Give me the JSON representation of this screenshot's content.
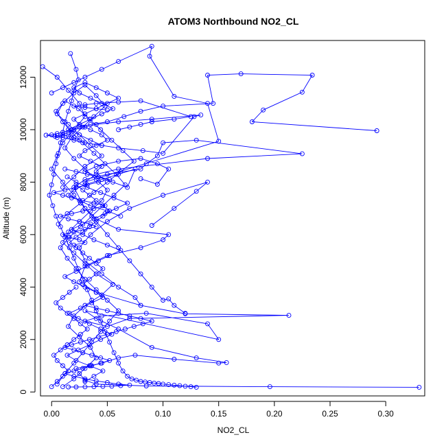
{
  "chart_data": {
    "type": "line",
    "title": "ATOM3 Northbound NO2_CL",
    "xlabel": "NO2_CL",
    "ylabel": "Altitude (m)",
    "xlim": [
      -0.01,
      0.335
    ],
    "ylim": [
      -150,
      13400
    ],
    "xticks": [
      0.0,
      0.05,
      0.1,
      0.15,
      0.2,
      0.25,
      0.3
    ],
    "xtick_labels": [
      "0.00",
      "0.05",
      "0.10",
      "0.15",
      "0.20",
      "0.25",
      "0.30"
    ],
    "yticks": [
      0,
      2000,
      4000,
      6000,
      8000,
      10000,
      12000
    ],
    "ytick_labels": [
      "0",
      "2000",
      "4000",
      "6000",
      "8000",
      "10000",
      "12000"
    ],
    "grid": false,
    "marker": "open-circle",
    "color": "#0000ff",
    "series": [
      {
        "x": [
          0.33,
          0.196,
          0.085,
          0.04,
          0.03,
          0.025,
          0.022,
          0.035,
          0.045,
          0.06,
          0.075,
          0.11,
          0.15,
          0.157,
          0.13,
          0.09,
          0.06,
          0.04,
          0.03,
          0.15,
          0.14,
          0.085,
          0.045,
          0.03,
          0.05,
          0.07,
          0.213,
          0.12,
          0.08,
          0.04,
          0.025,
          0.03,
          0.05,
          0.08,
          0.1,
          0.105,
          0.06,
          0.04,
          0.03,
          0.02,
          0.03,
          0.05,
          0.08,
          0.085,
          0.095,
          0.1,
          0.13,
          0.225,
          0.14,
          0.06,
          0.04,
          0.03,
          0.15,
          0.14,
          0.11,
          0.088,
          0.09,
          0.06,
          0.045,
          0.03,
          0.02,
          0.01,
          0.0
        ],
        "y": [
          180,
          200,
          230,
          300,
          450,
          700,
          900,
          1000,
          1100,
          1300,
          1400,
          1250,
          1100,
          1120,
          1300,
          1700,
          2400,
          2800,
          3100,
          2000,
          2600,
          3000,
          2900,
          2700,
          2500,
          2800,
          2920,
          2980,
          3300,
          3800,
          4200,
          4800,
          5200,
          5500,
          5800,
          6000,
          6200,
          6600,
          7000,
          7800,
          8100,
          8300,
          8500,
          8700,
          9000,
          9500,
          9600,
          9080,
          8900,
          8500,
          8300,
          8000,
          9560,
          11000,
          11270,
          12800,
          13180,
          12600,
          12300,
          12000,
          11800,
          11600,
          11400
        ]
      },
      {
        "x": [
          0.292,
          0.18,
          0.19,
          0.225,
          0.234,
          0.17,
          0.14,
          0.145,
          0.1,
          0.08,
          0.065,
          0.05,
          0.035,
          0.025,
          0.018,
          0.01,
          0.005,
          0.0,
          -0.005,
          0.01,
          0.02,
          0.03,
          0.045,
          0.06,
          0.082,
          0.1,
          0.128,
          0.134,
          0.09,
          0.06,
          0.04,
          0.03,
          0.02,
          0.015,
          0.01,
          0.005,
          0.003,
          0.005,
          0.01,
          0.015,
          0.02,
          0.025
        ],
        "y": [
          9960,
          10300,
          10750,
          11430,
          12080,
          12130,
          12080,
          11000,
          10900,
          10700,
          10500,
          10300,
          10200,
          10100,
          10000,
          9900,
          9850,
          9800,
          9790,
          9700,
          9600,
          9500,
          9400,
          9300,
          9200,
          9100,
          10500,
          10560,
          10400,
          10300,
          10200,
          10100,
          10000,
          9900,
          9800,
          9700,
          9750,
          9780,
          9800,
          9760,
          9700,
          9600
        ]
      },
      {
        "x": [
          -0.008,
          0.005,
          0.015,
          0.025,
          0.03,
          0.02,
          0.01,
          0.005,
          0.0,
          0.01,
          0.02,
          0.03,
          0.04,
          0.05,
          0.06,
          0.07,
          0.08,
          0.09,
          0.1,
          0.105,
          0.11,
          0.12
        ],
        "y": [
          12400,
          12000,
          11500,
          11000,
          10500,
          10000,
          9500,
          9000,
          8500,
          8000,
          7500,
          7000,
          6500,
          6000,
          5500,
          5000,
          4500,
          4000,
          3500,
          3550,
          3300,
          3000
        ]
      },
      {
        "x": [
          0.017,
          0.022,
          0.024,
          0.02,
          0.018,
          0.015,
          0.012,
          0.01,
          0.008,
          0.006,
          0.004,
          0.002,
          0.0,
          -0.002,
          0.001,
          0.004,
          0.008,
          0.012,
          0.016,
          0.02,
          0.024,
          0.028,
          0.032,
          0.036,
          0.04,
          0.044,
          0.048,
          0.052,
          0.056,
          0.06,
          0.064,
          0.068,
          0.072,
          0.076,
          0.08,
          0.084,
          0.088,
          0.092,
          0.096,
          0.1,
          0.105,
          0.11,
          0.115,
          0.12,
          0.125,
          0.13
        ],
        "y": [
          12900,
          12300,
          11900,
          11500,
          11100,
          10700,
          10300,
          9900,
          9500,
          9100,
          8700,
          8300,
          7900,
          7500,
          7100,
          6700,
          6300,
          5900,
          5500,
          5100,
          4700,
          4300,
          3900,
          3500,
          3100,
          2700,
          2300,
          1900,
          1500,
          1100,
          800,
          600,
          500,
          450,
          400,
          380,
          360,
          340,
          320,
          300,
          280,
          260,
          240,
          220,
          200,
          180
        ]
      },
      {
        "x": [
          0.01,
          0.02,
          0.03,
          0.04,
          0.035,
          0.025,
          0.015,
          0.02,
          0.03,
          0.045,
          0.055,
          0.04,
          0.03,
          0.02,
          0.01,
          0.015,
          0.025,
          0.035,
          0.045,
          0.05,
          0.04,
          0.03,
          0.02,
          0.012,
          0.018,
          0.028,
          0.038,
          0.048,
          0.04,
          0.03,
          0.02,
          0.01,
          0.005,
          0.015,
          0.025,
          0.035,
          0.045,
          0.03,
          0.02,
          0.01
        ],
        "y": [
          200,
          500,
          900,
          1300,
          1700,
          2100,
          2500,
          2900,
          3300,
          3700,
          4100,
          4500,
          4900,
          5300,
          5700,
          6100,
          6500,
          6900,
          7300,
          7700,
          8100,
          8500,
          8900,
          9300,
          9700,
          10100,
          10500,
          10900,
          11300,
          11700,
          11400,
          11000,
          10600,
          10200,
          9800,
          9400,
          9000,
          8600,
          8200,
          7800
        ]
      },
      {
        "x": [
          0.005,
          0.012,
          0.02,
          0.028,
          0.036,
          0.044,
          0.052,
          0.06,
          0.05,
          0.04,
          0.03,
          0.022,
          0.014,
          0.008,
          0.016,
          0.026,
          0.036,
          0.046,
          0.056,
          0.066,
          0.058,
          0.048,
          0.038,
          0.028,
          0.018,
          0.01,
          0.004,
          0.012,
          0.024,
          0.034,
          0.044,
          0.054,
          0.064,
          0.074,
          0.062,
          0.05,
          0.038,
          0.026,
          0.014,
          0.006
        ],
        "y": [
          300,
          700,
          1100,
          1500,
          1900,
          2300,
          2700,
          3100,
          3500,
          3900,
          4300,
          4700,
          5100,
          5500,
          5900,
          6300,
          6700,
          7100,
          7500,
          7900,
          8300,
          8700,
          9100,
          9500,
          9900,
          10300,
          10700,
          11100,
          10800,
          10400,
          10000,
          9600,
          9200,
          8800,
          8400,
          8000,
          7600,
          7200,
          6800,
          6400
        ]
      },
      {
        "x": [
          0.03,
          0.038,
          0.046,
          0.034,
          0.022,
          0.014,
          0.024,
          0.034,
          0.044,
          0.054,
          0.044,
          0.034,
          0.024,
          0.016,
          0.026,
          0.036,
          0.046,
          0.04,
          0.03,
          0.02,
          0.012,
          0.022,
          0.032,
          0.042,
          0.052,
          0.062,
          0.05,
          0.038,
          0.028,
          0.018,
          0.028,
          0.038,
          0.048,
          0.058,
          0.068,
          0.056,
          0.044,
          0.032,
          0.022,
          0.014
        ],
        "y": [
          400,
          600,
          800,
          1000,
          1200,
          1400,
          1600,
          1800,
          2000,
          2200,
          2400,
          2600,
          2800,
          3000,
          3200,
          3400,
          3600,
          3800,
          4000,
          4200,
          4400,
          4600,
          4800,
          5000,
          5200,
          5400,
          5600,
          5800,
          6000,
          6200,
          6400,
          6600,
          6800,
          7000,
          7200,
          7400,
          7600,
          7800,
          8000,
          8200
        ]
      },
      {
        "x": [
          0.04,
          0.045,
          0.035,
          0.025,
          0.03,
          0.04,
          0.05,
          0.045,
          0.035,
          0.025,
          0.02,
          0.03,
          0.04,
          0.05,
          0.06,
          0.05,
          0.04,
          0.03,
          0.02,
          0.025,
          0.035,
          0.045,
          0.055,
          0.045,
          0.035,
          0.025,
          0.015,
          0.025,
          0.035,
          0.045
        ],
        "y": [
          8400,
          8600,
          8800,
          9000,
          9200,
          9400,
          9600,
          9800,
          10000,
          10200,
          10400,
          10600,
          10800,
          11000,
          11200,
          11400,
          11600,
          11800,
          11600,
          11400,
          11200,
          11000,
          10800,
          10600,
          10400,
          10200,
          10000,
          9800,
          9600,
          9400
        ]
      },
      {
        "x": [
          0.015,
          0.022,
          0.03,
          0.038,
          0.046,
          0.054,
          0.062,
          0.07,
          0.06,
          0.05,
          0.04,
          0.03,
          0.02,
          0.012,
          0.02,
          0.028,
          0.036,
          0.044,
          0.052,
          0.044,
          0.036,
          0.028,
          0.02,
          0.012,
          0.018,
          0.026,
          0.034,
          0.042,
          0.05,
          0.058,
          0.066,
          0.074,
          0.082,
          0.09,
          0.08,
          0.07,
          0.06,
          0.05,
          0.04,
          0.03
        ],
        "y": [
          190,
          190,
          195,
          200,
          210,
          220,
          240,
          260,
          300,
          360,
          420,
          500,
          600,
          700,
          800,
          900,
          1000,
          1100,
          1200,
          1300,
          1400,
          1500,
          1600,
          1700,
          1800,
          1900,
          2000,
          2100,
          2200,
          2300,
          2400,
          2500,
          2600,
          2700,
          2800,
          2900,
          3000,
          3100,
          3200,
          3300
        ]
      },
      {
        "x": [
          0.02,
          0.03,
          0.025,
          0.015,
          0.01,
          0.02,
          0.03,
          0.04,
          0.035,
          0.025,
          0.015,
          0.008,
          0.018,
          0.028,
          0.038,
          0.048,
          0.038,
          0.028,
          0.018,
          0.01,
          0.002,
          0.012,
          0.022,
          0.032,
          0.042,
          0.052,
          0.042,
          0.032,
          0.022,
          0.012
        ],
        "y": [
          5600,
          5700,
          5800,
          5900,
          6000,
          6100,
          6200,
          6300,
          6400,
          6500,
          6600,
          6700,
          6800,
          6900,
          7000,
          7100,
          7200,
          7300,
          7400,
          7500,
          7600,
          7700,
          7800,
          7900,
          8000,
          8100,
          8200,
          8300,
          8400,
          8500
        ]
      },
      {
        "x": [
          0.08,
          0.095,
          0.105,
          0.095,
          0.08,
          0.06,
          0.04,
          0.03,
          0.042,
          0.055,
          0.068,
          0.075,
          0.06,
          0.045,
          0.03,
          0.02,
          0.015,
          0.025,
          0.035,
          0.05,
          0.062
        ],
        "y": [
          8130,
          7920,
          8500,
          8700,
          8900,
          8800,
          8600,
          8400,
          8200,
          8000,
          7800,
          8500,
          8300,
          8100,
          7900,
          7700,
          7500,
          7300,
          7100,
          6900,
          6700
        ]
      },
      {
        "x": [
          0.09,
          0.11,
          0.13,
          0.14,
          0.1,
          0.07,
          0.05,
          0.035,
          0.025,
          0.03,
          0.045,
          0.06,
          0.075,
          0.08
        ],
        "y": [
          6350,
          7000,
          7650,
          8000,
          7500,
          7000,
          6500,
          6000,
          5500,
          5000,
          4500,
          4000,
          3600,
          3300
        ]
      },
      {
        "x": [
          0.0,
          0.005,
          0.01,
          0.015,
          0.01,
          0.005,
          0.002,
          0.008,
          0.014,
          0.02,
          0.026,
          0.032,
          0.026,
          0.02,
          0.014,
          0.008,
          0.004,
          0.01,
          0.016,
          0.022
        ],
        "y": [
          200,
          400,
          600,
          800,
          1000,
          1200,
          1400,
          1600,
          1800,
          2000,
          2200,
          2400,
          2600,
          2800,
          3000,
          3200,
          3400,
          3600,
          3800,
          4000
        ]
      },
      {
        "x": [
          0.028,
          0.034,
          0.04,
          0.046,
          0.04,
          0.034,
          0.028,
          0.022,
          0.016,
          0.022,
          0.028,
          0.034,
          0.04,
          0.046,
          0.052,
          0.046,
          0.04,
          0.034,
          0.028,
          0.022
        ],
        "y": [
          4100,
          4300,
          4500,
          4700,
          4900,
          5100,
          5300,
          5500,
          5700,
          5900,
          6100,
          6300,
          6500,
          6700,
          6900,
          7100,
          7300,
          7500,
          7700,
          7900
        ]
      },
      {
        "x": [
          0.06,
          0.07,
          0.08,
          0.09,
          0.11,
          0.125,
          0.08,
          0.06,
          0.04,
          0.03,
          0.02,
          0.03,
          0.04,
          0.05
        ],
        "y": [
          10000,
          10100,
          10200,
          10300,
          10400,
          10500,
          11100,
          11050,
          11000,
          10950,
          10900,
          10850,
          10800,
          10750
        ]
      }
    ]
  }
}
